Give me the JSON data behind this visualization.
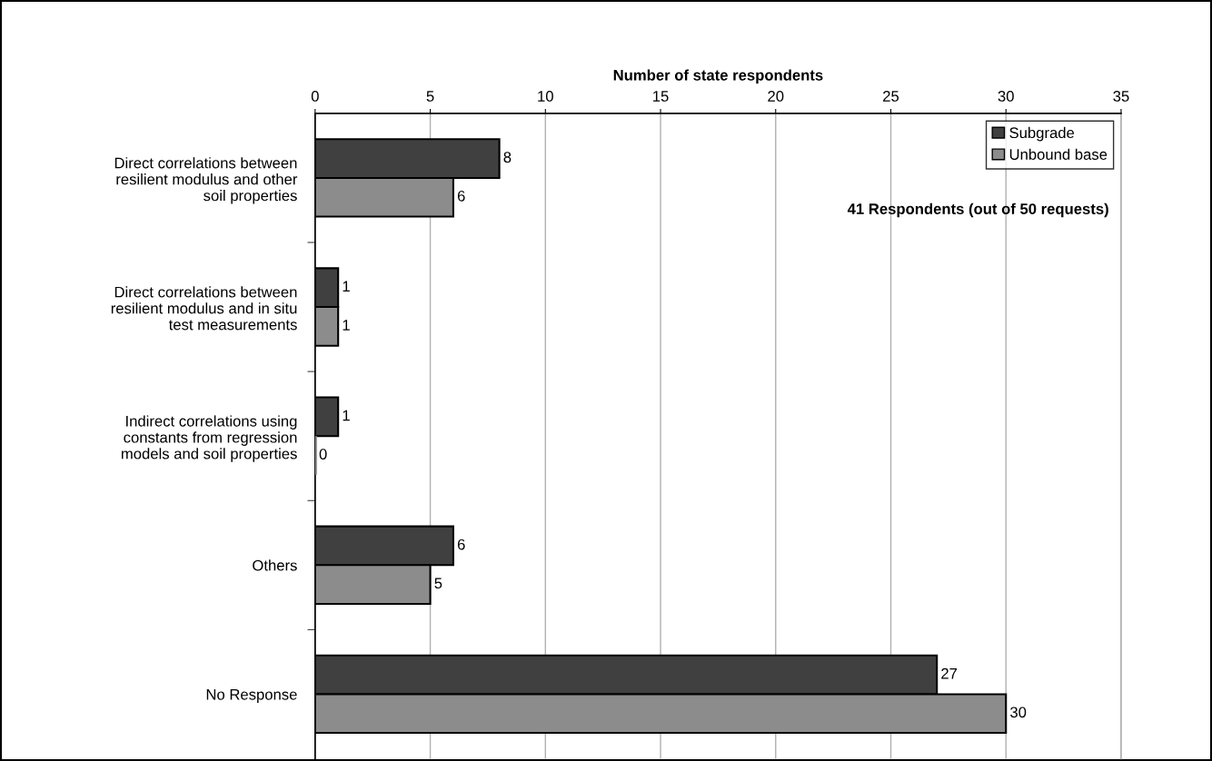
{
  "chart_data": {
    "type": "bar",
    "orientation": "horizontal",
    "xlabel": "Number of state respondents",
    "categories": [
      "Direct correlations between\nresilient modulus and other\nsoil properties",
      "Direct correlations between\nresilient modulus and in situ\ntest measurements",
      "Indirect correlations using\nconstants from regression\nmodels and soil properties",
      "Others",
      "No Response"
    ],
    "series": [
      {
        "name": "Subgrade",
        "color": "#404040",
        "values": [
          8,
          1,
          1,
          6,
          27
        ]
      },
      {
        "name": "Unbound base",
        "color": "#8c8c8c",
        "values": [
          6,
          1,
          0,
          5,
          30
        ]
      }
    ],
    "xlim": [
      0,
      35
    ],
    "xticks": [
      0,
      5,
      10,
      15,
      20,
      25,
      30,
      35
    ],
    "grid": "x",
    "legend": "top right",
    "data_labels": true,
    "annotations": [
      "41 Respondents (out of 50 requests)"
    ]
  }
}
